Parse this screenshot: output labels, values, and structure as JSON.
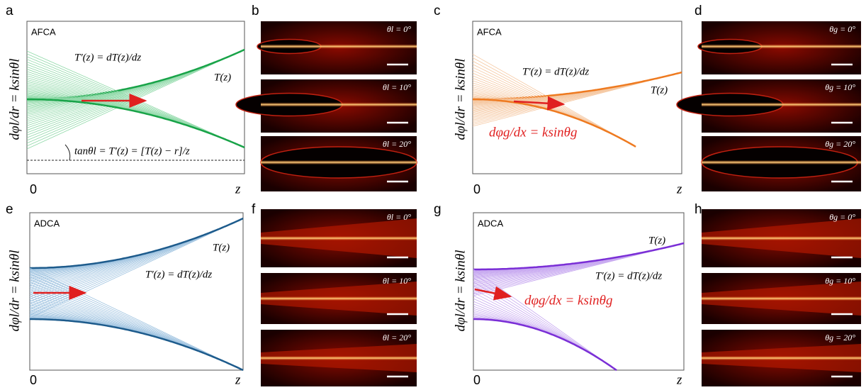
{
  "panels": [
    {
      "letter": "a",
      "label": "AFCA",
      "y_label": "dφl/dr = ksinθl",
      "x_origin": "0",
      "x_label": "z",
      "annotations": [
        "T′(z) = dT(z)/dz",
        "T(z)",
        "tanθl = T′(z) = [T(z) − r]/z"
      ]
    },
    {
      "letter": "b",
      "images": [
        "θl = 0°",
        "θl = 10°",
        "θl = 20°"
      ]
    },
    {
      "letter": "c",
      "label": "AFCA",
      "y_label": "dφl/dr = ksinθl",
      "x_origin": "0",
      "x_label": "z",
      "annotations": [
        "T′(z) = dT(z)/dz",
        "T(z)",
        "dφg/dx = ksinθg"
      ]
    },
    {
      "letter": "d",
      "images": [
        "θg = 0°",
        "θg = 10°",
        "θg = 20°"
      ]
    },
    {
      "letter": "e",
      "label": "ADCA",
      "y_label": "dφl/dr = ksinθl",
      "x_origin": "0",
      "x_label": "z",
      "annotations": [
        "T(z)",
        "T′(z) = dT(z)/dz"
      ]
    },
    {
      "letter": "f",
      "images": [
        "θl = 0°",
        "θl = 10°",
        "θl = 20°"
      ]
    },
    {
      "letter": "g",
      "label": "ADCA",
      "y_label": "dφl/dr = ksinθl",
      "x_origin": "0",
      "x_label": "z",
      "annotations": [
        "T(z)",
        "T′(z) = dT(z)/dz",
        "dφg/dx = ksinθg"
      ]
    },
    {
      "letter": "h",
      "images": [
        "θg = 0°",
        "θg = 10°",
        "θg = 20°"
      ]
    }
  ]
}
